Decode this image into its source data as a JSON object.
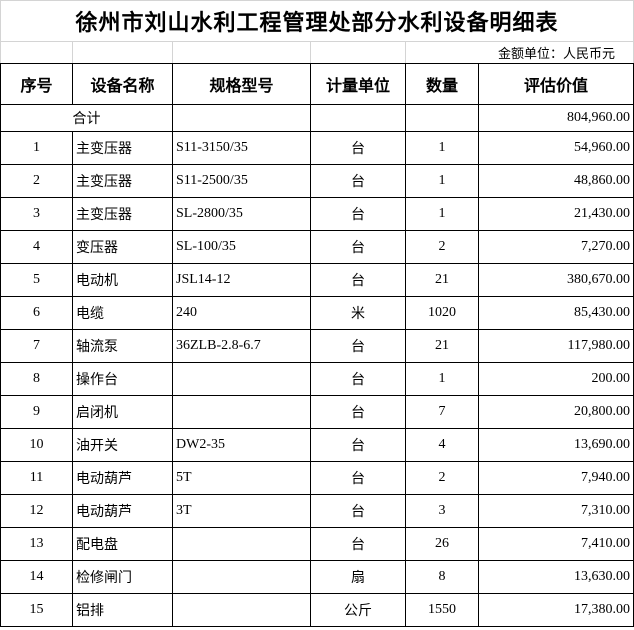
{
  "title": "徐州市刘山水利工程管理处部分水利设备明细表",
  "currency_note": "金额单位：人民币元",
  "headers": [
    "序号",
    "设备名称",
    "规格型号",
    "计量单位",
    "数量",
    "评估价值"
  ],
  "total": {
    "label": "合计",
    "value": "804,960.00"
  },
  "rows": [
    {
      "no": "1",
      "name": "主变压器",
      "spec": "S11-3150/35",
      "unit": "台",
      "qty": "1",
      "value": "54,960.00"
    },
    {
      "no": "2",
      "name": "主变压器",
      "spec": "S11-2500/35",
      "unit": "台",
      "qty": "1",
      "value": "48,860.00"
    },
    {
      "no": "3",
      "name": "主变压器",
      "spec": "SL-2800/35",
      "unit": "台",
      "qty": "1",
      "value": "21,430.00"
    },
    {
      "no": "4",
      "name": "变压器",
      "spec": "SL-100/35",
      "unit": "台",
      "qty": "2",
      "value": "7,270.00"
    },
    {
      "no": "5",
      "name": "电动机",
      "spec": "JSL14-12",
      "unit": "台",
      "qty": "21",
      "value": "380,670.00"
    },
    {
      "no": "6",
      "name": "电缆",
      "spec": "240",
      "unit": "米",
      "qty": "1020",
      "value": "85,430.00"
    },
    {
      "no": "7",
      "name": "轴流泵",
      "spec": "36ZLB-2.8-6.7",
      "unit": "台",
      "qty": "21",
      "value": "117,980.00"
    },
    {
      "no": "8",
      "name": "操作台",
      "spec": "",
      "unit": "台",
      "qty": "1",
      "value": "200.00"
    },
    {
      "no": "9",
      "name": "启闭机",
      "spec": "",
      "unit": "台",
      "qty": "7",
      "value": "20,800.00"
    },
    {
      "no": "10",
      "name": "油开关",
      "spec": "DW2-35",
      "unit": "台",
      "qty": "4",
      "value": "13,690.00"
    },
    {
      "no": "11",
      "name": "电动葫芦",
      "spec": "5T",
      "unit": "台",
      "qty": "2",
      "value": "7,940.00"
    },
    {
      "no": "12",
      "name": "电动葫芦",
      "spec": "3T",
      "unit": "台",
      "qty": "3",
      "value": "7,310.00"
    },
    {
      "no": "13",
      "name": "配电盘",
      "spec": "",
      "unit": "台",
      "qty": "26",
      "value": "7,410.00"
    },
    {
      "no": "14",
      "name": "检修闸门",
      "spec": "",
      "unit": "扇",
      "qty": "8",
      "value": "13,630.00"
    },
    {
      "no": "15",
      "name": "铝排",
      "spec": "",
      "unit": "公斤",
      "qty": "1550",
      "value": "17,380.00"
    }
  ]
}
